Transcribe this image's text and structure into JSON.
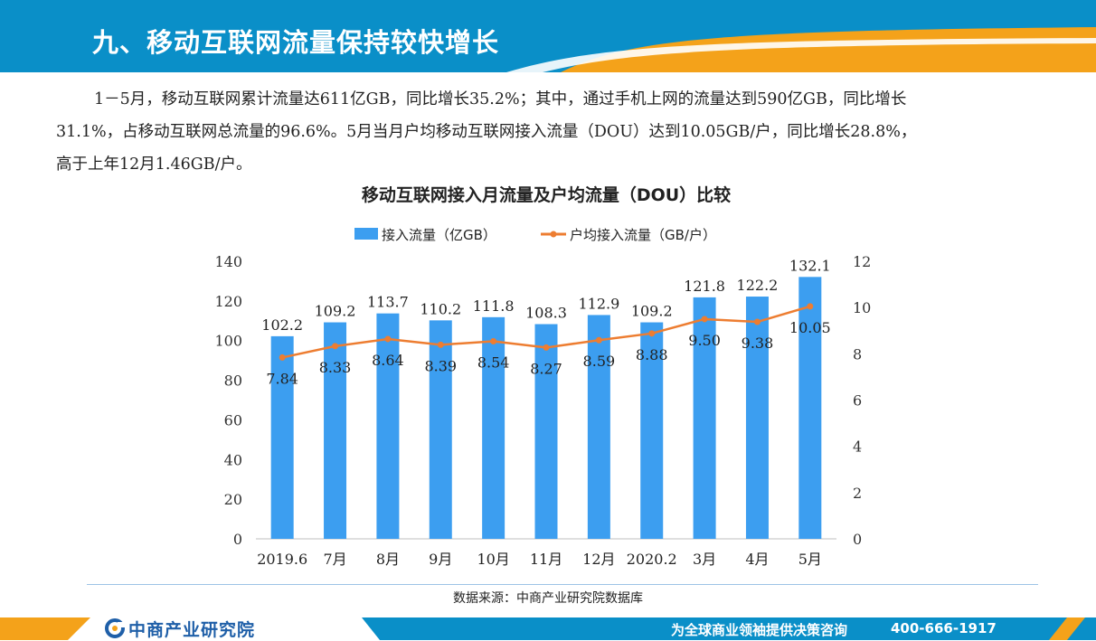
{
  "header": {
    "title": "九、移动互联网流量保持较快增长",
    "colors": {
      "blue": "#0a8fc8",
      "orange": "#f4a21a"
    }
  },
  "body": {
    "line1": "1－5月，移动互联网累计流量达611亿GB，同比增长35.2%；其中，通过手机上网的流量达到590亿GB，同比增长",
    "line2": "31.1%，占移动互联网总流量的96.6%。5月当月户均移动互联网接入流量（DOU）达到10.05GB/户，同比增长28.8%，",
    "line3": "高于上年12月1.46GB/户。"
  },
  "chart_data": {
    "type": "bar+line",
    "title": "移动互联网接入月流量及户均流量（DOU）比较",
    "categories": [
      "2019.6",
      "7月",
      "8月",
      "9月",
      "10月",
      "11月",
      "12月",
      "2020.2",
      "3月",
      "4月",
      "5月"
    ],
    "series": [
      {
        "name": "接入流量（亿GB）",
        "type": "bar",
        "axis": "left",
        "color": "#3c9ef0",
        "values": [
          102.2,
          109.2,
          113.7,
          110.2,
          111.8,
          108.3,
          112.9,
          109.2,
          121.8,
          122.2,
          132.1
        ],
        "labels": [
          "102.2",
          "109.2",
          "113.7",
          "110.2",
          "111.8",
          "108.3",
          "112.9",
          "109.2",
          "121.8",
          "122.2",
          "132.1"
        ]
      },
      {
        "name": "户均接入流量（GB/户）",
        "type": "line",
        "axis": "right",
        "color": "#ed7d31",
        "values": [
          7.84,
          8.33,
          8.64,
          8.39,
          8.54,
          8.27,
          8.59,
          8.88,
          9.5,
          9.38,
          10.05
        ],
        "labels": [
          "7.84",
          "8.33",
          "8.64",
          "8.39",
          "8.54",
          "8.27",
          "8.59",
          "8.88",
          "9.50",
          "9.38",
          "10.05"
        ]
      }
    ],
    "y_left": {
      "min": 0,
      "max": 140,
      "step": 20,
      "ticks": [
        "0",
        "20",
        "40",
        "60",
        "80",
        "100",
        "120",
        "140"
      ]
    },
    "y_right": {
      "min": 0,
      "max": 12,
      "step": 2,
      "ticks": [
        "0",
        "2",
        "4",
        "6",
        "8",
        "10",
        "12"
      ]
    },
    "legend_position": "top",
    "grid": false
  },
  "source": "数据来源：中商产业研究院数据库",
  "footer": {
    "logo": "中商产业研究院",
    "slogan": "为全球商业领袖提供决策咨询",
    "phone": "400-666-1917"
  }
}
